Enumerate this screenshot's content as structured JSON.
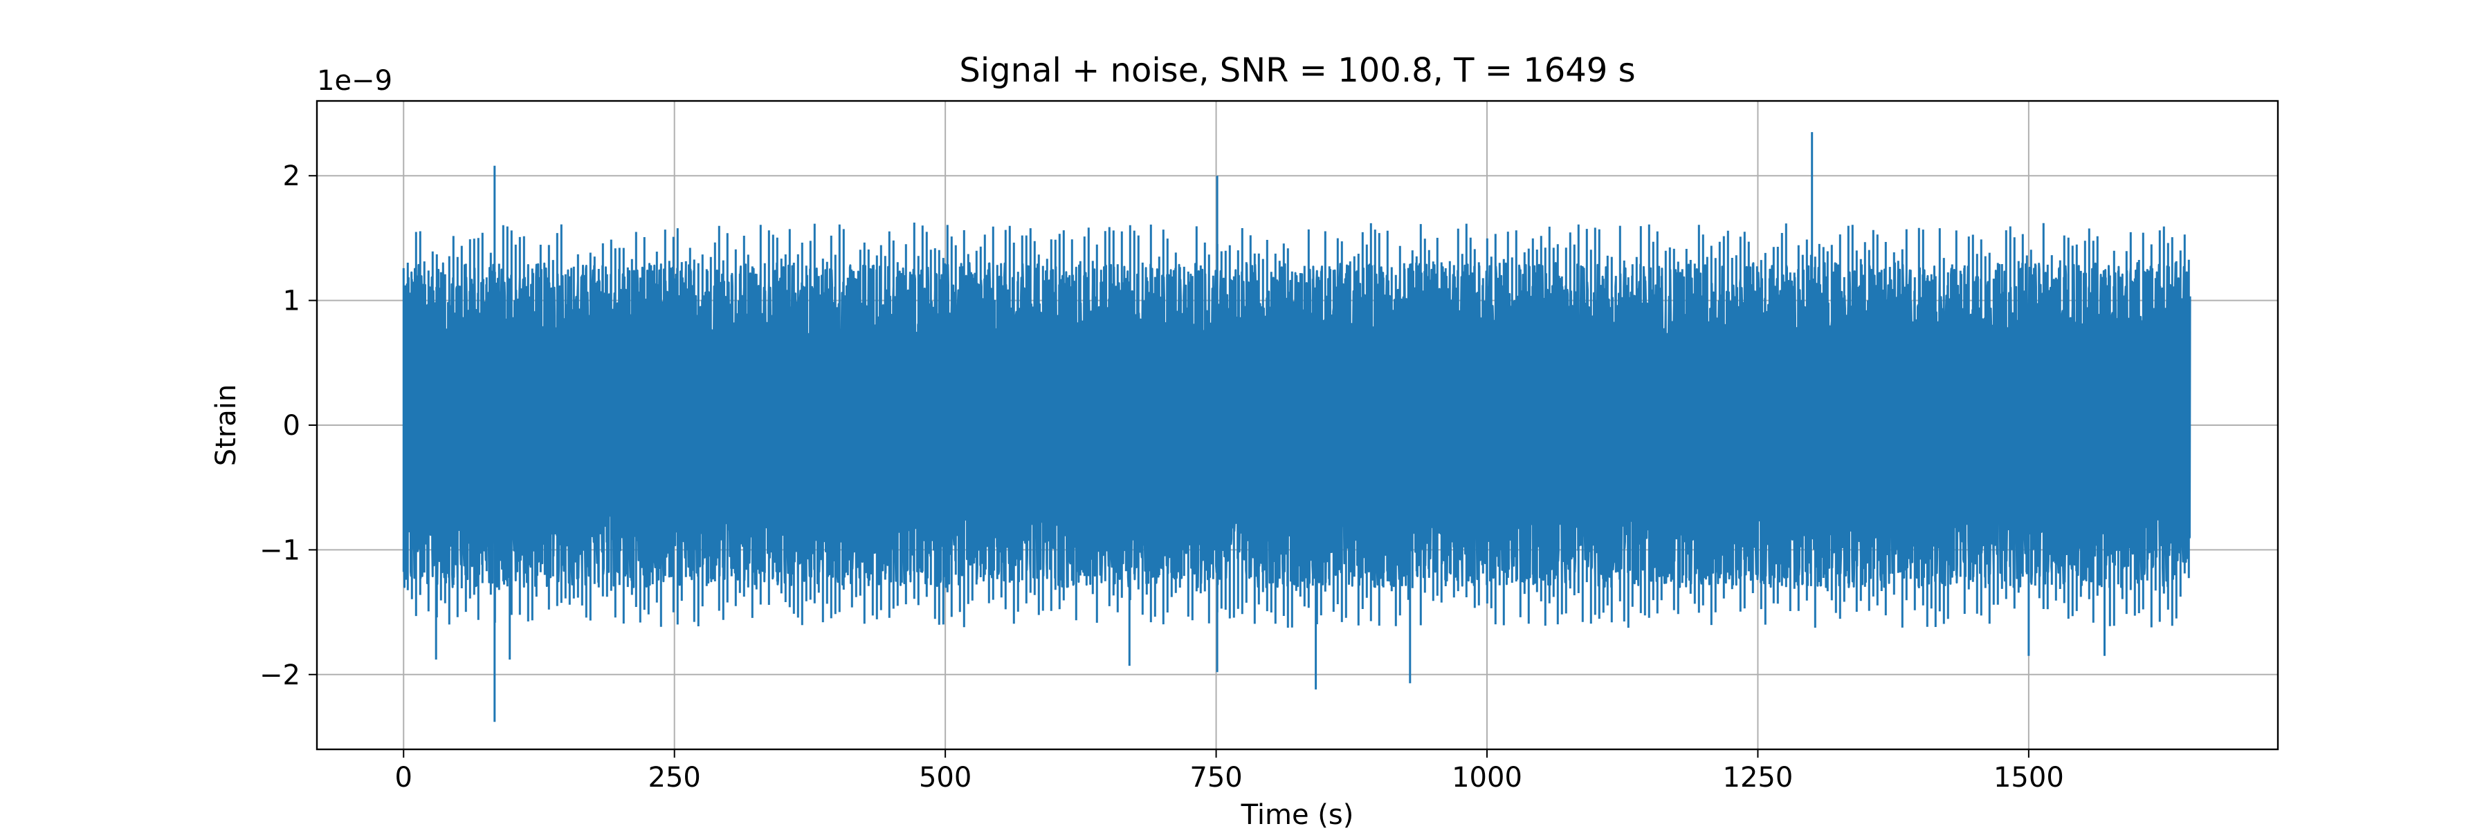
{
  "chart_data": {
    "type": "line",
    "title": "Signal + noise, SNR = 100.8, T = 1649 s",
    "xlabel": "Time (s)",
    "ylabel": "Strain",
    "offset_label": "1e−9",
    "xlim": [
      -80,
      1730
    ],
    "ylim": [
      -2.6,
      2.6
    ],
    "x_ticks": [
      0,
      250,
      500,
      750,
      1000,
      1250,
      1500
    ],
    "x_tick_labels": [
      "0",
      "250",
      "500",
      "750",
      "1000",
      "1250",
      "1500"
    ],
    "y_ticks": [
      -2,
      -1,
      0,
      1,
      2
    ],
    "y_tick_labels": [
      "−2",
      "−1",
      "0",
      "1",
      "2"
    ],
    "grid": true,
    "series": [
      {
        "color": "#1f77b4",
        "x_range": [
          0,
          1649
        ],
        "envelope": {
          "typical_max": 1.3,
          "typical_min": -1.3,
          "peaks": [
            {
              "x": 84,
              "y": 2.08
            },
            {
              "x": 1300,
              "y": 2.35
            },
            {
              "x": 751,
              "y": 2.0
            },
            {
              "x": 84,
              "y": -2.38
            },
            {
              "x": 842,
              "y": -2.12
            },
            {
              "x": 30,
              "y": -1.88
            },
            {
              "x": 98,
              "y": -1.88
            },
            {
              "x": 929,
              "y": -2.07
            },
            {
              "x": 670,
              "y": -1.93
            },
            {
              "x": 751,
              "y": -1.98
            },
            {
              "x": 1500,
              "y": -1.85
            },
            {
              "x": 1570,
              "y": -1.85
            }
          ]
        }
      }
    ]
  }
}
